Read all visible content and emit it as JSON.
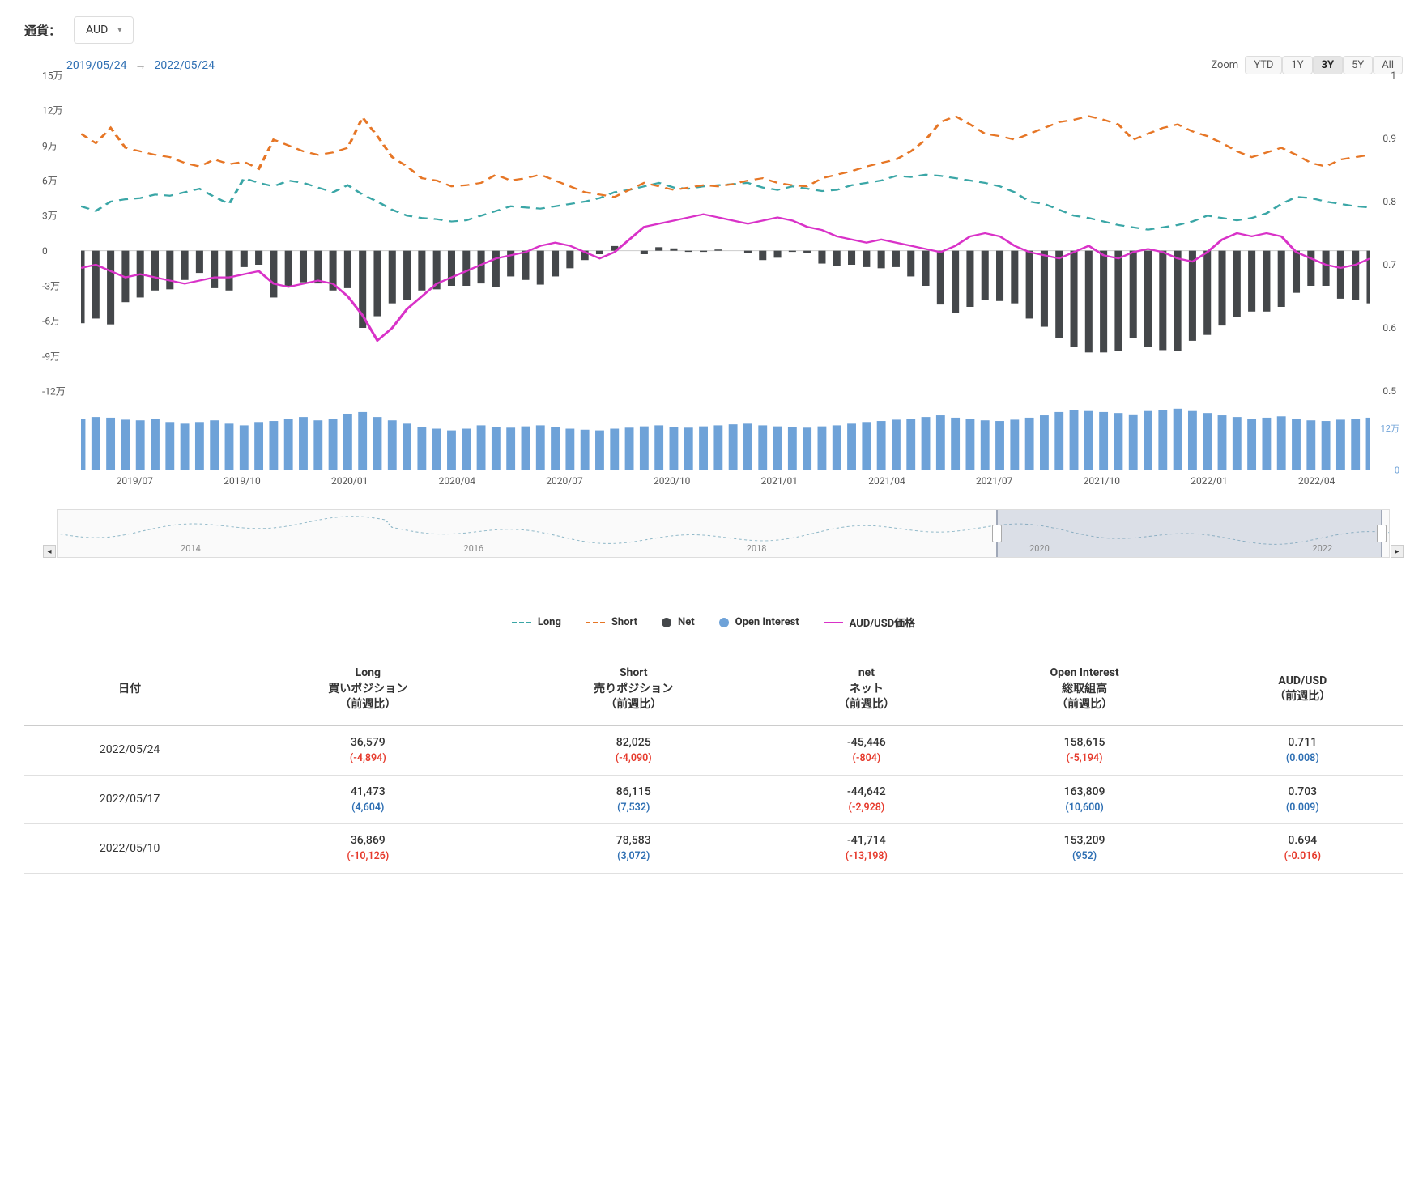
{
  "currency_label": "通貨：",
  "currency_select": {
    "value": "AUD"
  },
  "date_range": {
    "from": "2019/05/24",
    "to": "2022/05/24"
  },
  "zoom": {
    "label": "Zoom",
    "buttons": [
      "YTD",
      "1Y",
      "3Y",
      "5Y",
      "All"
    ],
    "active": "3Y"
  },
  "chart": {
    "type": "combo-line-bar-dual-axis",
    "background_color": "#ffffff",
    "left_axis": {
      "min": -120000,
      "max": 150000,
      "step": 30000,
      "labels": [
        "15万",
        "12万",
        "9万",
        "6万",
        "3万",
        "0",
        "-3万",
        "-6万",
        "-9万",
        "-12万"
      ],
      "label_fontsize": 12,
      "label_color": "#555"
    },
    "right_axis": {
      "min": 0.5,
      "max": 1.0,
      "step": 0.1,
      "labels": [
        "1",
        "0.9",
        "0.8",
        "0.7",
        "0.6",
        "0.5"
      ],
      "label_fontsize": 12,
      "label_color": "#555"
    },
    "x_labels": [
      "2019/07",
      "2019/10",
      "2020/01",
      "2020/04",
      "2020/07",
      "2020/10",
      "2021/01",
      "2021/04",
      "2021/07",
      "2021/10",
      "2022/01",
      "2022/04"
    ],
    "series": {
      "long": {
        "label": "Long",
        "style": "dashed",
        "color": "#3aa6a6",
        "width": 2.2,
        "y": [
          38000,
          34000,
          42000,
          44000,
          45000,
          48000,
          47000,
          50000,
          53000,
          46000,
          40000,
          62000,
          58000,
          55000,
          60000,
          58000,
          54000,
          50000,
          56000,
          48000,
          42000,
          35000,
          30000,
          28000,
          27000,
          25000,
          26000,
          30000,
          34000,
          38000,
          37000,
          36000,
          38000,
          40000,
          42000,
          45000,
          50000,
          52000,
          55000,
          58000,
          54000,
          53000,
          55000,
          56000,
          57000,
          58000,
          54000,
          52000,
          55000,
          53000,
          51000,
          52000,
          56000,
          58000,
          60000,
          64000,
          63000,
          65000,
          64000,
          62000,
          60000,
          58000,
          55000,
          50000,
          42000,
          40000,
          35000,
          30000,
          28000,
          25000,
          22000,
          20000,
          18000,
          20000,
          22000,
          25000,
          30000,
          28000,
          26000,
          28000,
          32000,
          40000,
          46000,
          45000,
          42000,
          40000,
          38000,
          37000
        ]
      },
      "short": {
        "label": "Short",
        "style": "dashed",
        "color": "#e67626",
        "width": 2.2,
        "y": [
          100000,
          92000,
          105000,
          88000,
          85000,
          82000,
          80000,
          75000,
          72000,
          78000,
          74000,
          76000,
          70000,
          95000,
          90000,
          85000,
          82000,
          84000,
          88000,
          114000,
          98000,
          80000,
          72000,
          62000,
          60000,
          55000,
          56000,
          58000,
          65000,
          60000,
          62000,
          65000,
          60000,
          55000,
          50000,
          48000,
          46000,
          52000,
          58000,
          55000,
          52000,
          54000,
          56000,
          55000,
          57000,
          60000,
          62000,
          58000,
          56000,
          55000,
          62000,
          65000,
          68000,
          72000,
          75000,
          78000,
          85000,
          95000,
          110000,
          115000,
          108000,
          100000,
          98000,
          95000,
          100000,
          105000,
          110000,
          112000,
          115000,
          112000,
          108000,
          95000,
          100000,
          105000,
          108000,
          102000,
          98000,
          92000,
          85000,
          80000,
          84000,
          88000,
          82000,
          75000,
          72000,
          78000,
          80000,
          82000
        ]
      },
      "net": {
        "label": "Net",
        "style": "bar",
        "color": "#44474a",
        "bar_width": 0.5,
        "y": [
          -62000,
          -58000,
          -63000,
          -44000,
          -40000,
          -34000,
          -33000,
          -25000,
          -19000,
          -32000,
          -34000,
          -14000,
          -12000,
          -40000,
          -30000,
          -27000,
          -28000,
          -34000,
          -32000,
          -66000,
          -56000,
          -45000,
          -42000,
          -34000,
          -33000,
          -30000,
          -30000,
          -28000,
          -31000,
          -22000,
          -25000,
          -29000,
          -22000,
          -15000,
          -8000,
          -3000,
          4000,
          0,
          -3000,
          3000,
          2000,
          -1000,
          -1000,
          1000,
          0,
          -2000,
          -8000,
          -6000,
          -1000,
          -2000,
          -11000,
          -13000,
          -12000,
          -14000,
          -15000,
          -14000,
          -22000,
          -30000,
          -46000,
          -53000,
          -48000,
          -42000,
          -43000,
          -45000,
          -58000,
          -65000,
          -75000,
          -82000,
          -87000,
          -87000,
          -86000,
          -75000,
          -82000,
          -85000,
          -86000,
          -77000,
          -72000,
          -64000,
          -57000,
          -52000,
          -52000,
          -48000,
          -36000,
          -30000,
          -30000,
          -41000,
          -42000,
          -45000
        ]
      },
      "price": {
        "label": "AUD/USD価格",
        "style": "solid",
        "color": "#d932c8",
        "width": 2.2,
        "axis": "right",
        "y": [
          0.695,
          0.7,
          0.69,
          0.68,
          0.685,
          0.68,
          0.675,
          0.67,
          0.675,
          0.68,
          0.68,
          0.685,
          0.69,
          0.67,
          0.665,
          0.67,
          0.675,
          0.67,
          0.65,
          0.62,
          0.58,
          0.6,
          0.63,
          0.65,
          0.67,
          0.68,
          0.69,
          0.7,
          0.71,
          0.715,
          0.72,
          0.73,
          0.735,
          0.73,
          0.72,
          0.71,
          0.72,
          0.74,
          0.76,
          0.765,
          0.77,
          0.775,
          0.78,
          0.775,
          0.77,
          0.765,
          0.77,
          0.775,
          0.77,
          0.76,
          0.755,
          0.745,
          0.74,
          0.735,
          0.74,
          0.735,
          0.73,
          0.725,
          0.72,
          0.73,
          0.745,
          0.75,
          0.745,
          0.73,
          0.72,
          0.715,
          0.71,
          0.72,
          0.73,
          0.715,
          0.71,
          0.72,
          0.725,
          0.72,
          0.71,
          0.705,
          0.72,
          0.74,
          0.75,
          0.745,
          0.75,
          0.745,
          0.72,
          0.71,
          0.7,
          0.695,
          0.7,
          0.71
        ]
      },
      "open_interest": {
        "label": "Open Interest",
        "style": "bar",
        "color": "#6ea2d8",
        "bar_width": 0.6,
        "y": [
          155,
          160,
          158,
          152,
          150,
          155,
          145,
          140,
          145,
          150,
          140,
          135,
          145,
          148,
          155,
          160,
          150,
          155,
          170,
          175,
          160,
          150,
          140,
          130,
          125,
          120,
          125,
          135,
          130,
          128,
          132,
          135,
          130,
          125,
          122,
          120,
          125,
          128,
          132,
          135,
          130,
          128,
          132,
          135,
          138,
          140,
          135,
          132,
          130,
          128,
          132,
          135,
          140,
          145,
          148,
          152,
          155,
          160,
          165,
          158,
          155,
          150,
          148,
          152,
          158,
          165,
          175,
          180,
          178,
          175,
          172,
          168,
          178,
          182,
          185,
          178,
          172,
          165,
          160,
          155,
          158,
          162,
          155,
          150,
          148,
          152,
          155,
          158
        ]
      }
    },
    "oi_subpanel": {
      "ylabels": [
        "12万",
        "0"
      ],
      "label_color": "#6ea2d8"
    }
  },
  "navigator": {
    "years": [
      "2014",
      "2016",
      "2018",
      "2020",
      "2022"
    ],
    "selection_start_pct": 70.5,
    "selection_end_pct": 99.5
  },
  "legend": [
    {
      "key": "long",
      "label": "Long",
      "color": "#3aa6a6",
      "style": "dashed"
    },
    {
      "key": "short",
      "label": "Short",
      "color": "#e67626",
      "style": "dashed"
    },
    {
      "key": "net",
      "label": "Net",
      "color": "#44474a",
      "style": "dot"
    },
    {
      "key": "oi",
      "label": "Open Interest",
      "color": "#6ea2d8",
      "style": "dot"
    },
    {
      "key": "price",
      "label": "AUD/USD価格",
      "color": "#d932c8",
      "style": "solid"
    }
  ],
  "table": {
    "columns": [
      {
        "h1": "日付",
        "h2": ""
      },
      {
        "h1": "Long",
        "h2": "買いポジション",
        "h3": "（前週比）"
      },
      {
        "h1": "Short",
        "h2": "売りポジション",
        "h3": "（前週比）"
      },
      {
        "h1": "net",
        "h2": "ネット",
        "h3": "（前週比）"
      },
      {
        "h1": "Open Interest",
        "h2": "総取組高",
        "h3": "（前週比）"
      },
      {
        "h1": "AUD/USD",
        "h2": "（前週比）"
      }
    ],
    "rows": [
      {
        "date": "2022/05/24",
        "long": {
          "v": "36,579",
          "d": "(-4,894)",
          "ds": "neg"
        },
        "short": {
          "v": "82,025",
          "d": "(-4,090)",
          "ds": "neg"
        },
        "net": {
          "v": "-45,446",
          "d": "(-804)",
          "ds": "neg"
        },
        "oi": {
          "v": "158,615",
          "d": "(-5,194)",
          "ds": "neg"
        },
        "px": {
          "v": "0.711",
          "d": "(0.008)",
          "ds": "pos"
        }
      },
      {
        "date": "2022/05/17",
        "long": {
          "v": "41,473",
          "d": "(4,604)",
          "ds": "pos"
        },
        "short": {
          "v": "86,115",
          "d": "(7,532)",
          "ds": "pos"
        },
        "net": {
          "v": "-44,642",
          "d": "(-2,928)",
          "ds": "neg"
        },
        "oi": {
          "v": "163,809",
          "d": "(10,600)",
          "ds": "pos"
        },
        "px": {
          "v": "0.703",
          "d": "(0.009)",
          "ds": "pos"
        }
      },
      {
        "date": "2022/05/10",
        "long": {
          "v": "36,869",
          "d": "(-10,126)",
          "ds": "neg"
        },
        "short": {
          "v": "78,583",
          "d": "(3,072)",
          "ds": "pos"
        },
        "net": {
          "v": "-41,714",
          "d": "(-13,198)",
          "ds": "neg"
        },
        "oi": {
          "v": "153,209",
          "d": "(952)",
          "ds": "pos"
        },
        "px": {
          "v": "0.694",
          "d": "(-0.016)",
          "ds": "neg"
        }
      }
    ]
  }
}
